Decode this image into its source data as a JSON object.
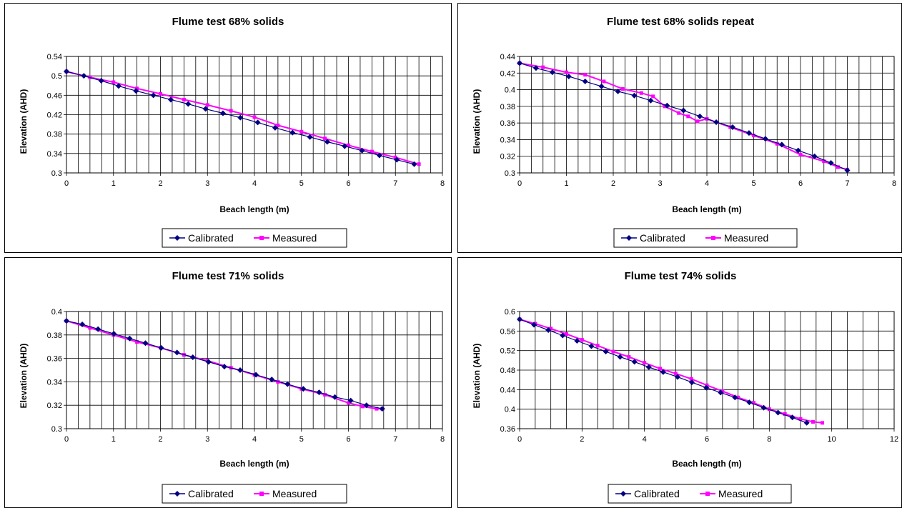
{
  "legend_labels": {
    "calibrated": "Calibrated",
    "measured": "Measured"
  },
  "colors": {
    "calibrated": "#000080",
    "measured": "#ff00ff"
  },
  "chart_data": [
    {
      "type": "line",
      "title": "Flume test 68% solids",
      "xlabel": "Beach length (m)",
      "ylabel": "Elevation (AHD)",
      "xlim": [
        0,
        8
      ],
      "ylim": [
        0.3,
        0.54
      ],
      "xticks": [
        0,
        1,
        2,
        3,
        4,
        5,
        6,
        7,
        8
      ],
      "xtick_labels": [
        "0",
        "1",
        "2",
        "3",
        "4",
        "5",
        "6",
        "7",
        "8"
      ],
      "yticks": [
        0.3,
        0.34,
        0.38,
        0.42,
        0.46,
        0.5,
        0.54
      ],
      "ytick_labels": [
        "0.3",
        "0.34",
        "0.38",
        "0.42",
        "0.46",
        "0.5",
        "0.54"
      ],
      "x_minor_step": 0.25,
      "grid": true,
      "legend_position": "bottom",
      "series": [
        {
          "name": "Calibrated",
          "marker": "diamond",
          "x": [
            0,
            0.37,
            0.74,
            1.11,
            1.48,
            1.85,
            2.22,
            2.59,
            2.96,
            3.33,
            3.7,
            4.07,
            4.44,
            4.81,
            5.18,
            5.55,
            5.92,
            6.29,
            6.66,
            7.03,
            7.4
          ],
          "y": [
            0.509,
            0.5,
            0.49,
            0.479,
            0.469,
            0.46,
            0.451,
            0.442,
            0.432,
            0.423,
            0.414,
            0.404,
            0.393,
            0.383,
            0.374,
            0.364,
            0.355,
            0.346,
            0.336,
            0.327,
            0.318
          ]
        },
        {
          "name": "Measured",
          "marker": "square",
          "x": [
            0,
            0.5,
            1.0,
            1.5,
            2.0,
            2.5,
            3.0,
            3.5,
            4.0,
            4.5,
            5.0,
            5.5,
            6.0,
            6.5,
            7.0,
            7.5
          ],
          "y": [
            0.509,
            0.497,
            0.487,
            0.474,
            0.463,
            0.451,
            0.44,
            0.428,
            0.415,
            0.398,
            0.385,
            0.371,
            0.357,
            0.344,
            0.332,
            0.318
          ]
        }
      ]
    },
    {
      "type": "line",
      "title": "Flume test 68% solids repeat",
      "xlabel": "Beach length (m)",
      "ylabel": "Elevation (AHD)",
      "xlim": [
        0,
        8
      ],
      "ylim": [
        0.3,
        0.44
      ],
      "xticks": [
        0,
        1,
        2,
        3,
        4,
        5,
        6,
        7,
        8
      ],
      "xtick_labels": [
        "0",
        "1",
        "2",
        "3",
        "4",
        "5",
        "6",
        "7",
        "8"
      ],
      "yticks": [
        0.3,
        0.32,
        0.34,
        0.36,
        0.38,
        0.4,
        0.42,
        0.44
      ],
      "ytick_labels": [
        "0.3",
        "0.32",
        "0.34",
        "0.36",
        "0.38",
        "0.4",
        "0.42",
        "0.44"
      ],
      "x_minor_step": 0.25,
      "grid": true,
      "legend_position": "bottom",
      "series": [
        {
          "name": "Calibrated",
          "marker": "diamond",
          "x": [
            0,
            0.35,
            0.7,
            1.05,
            1.4,
            1.75,
            2.1,
            2.45,
            2.8,
            3.15,
            3.5,
            3.85,
            4.2,
            4.55,
            4.9,
            5.25,
            5.6,
            5.95,
            6.3,
            6.65,
            7.0
          ],
          "y": [
            0.432,
            0.426,
            0.421,
            0.416,
            0.41,
            0.404,
            0.398,
            0.393,
            0.387,
            0.381,
            0.375,
            0.368,
            0.361,
            0.355,
            0.348,
            0.341,
            0.334,
            0.327,
            0.32,
            0.312,
            0.303
          ]
        },
        {
          "name": "Measured",
          "marker": "square",
          "x": [
            0,
            0.5,
            1.0,
            1.4,
            1.8,
            2.2,
            2.6,
            2.85,
            3.1,
            3.4,
            3.6,
            3.8,
            4.0,
            4.5,
            5.0,
            5.5,
            6.0,
            6.5,
            6.8,
            7.0
          ],
          "y": [
            0.432,
            0.427,
            0.421,
            0.418,
            0.41,
            0.401,
            0.396,
            0.392,
            0.38,
            0.372,
            0.368,
            0.362,
            0.365,
            0.355,
            0.345,
            0.335,
            0.322,
            0.314,
            0.307,
            0.304
          ]
        }
      ]
    },
    {
      "type": "line",
      "title": "Flume test 71% solids",
      "xlabel": "Beach length (m)",
      "ylabel": "Elevation (AHD)",
      "xlim": [
        0,
        8
      ],
      "ylim": [
        0.3,
        0.4
      ],
      "xticks": [
        0,
        1,
        2,
        3,
        4,
        5,
        6,
        7,
        8
      ],
      "xtick_labels": [
        "0",
        "1",
        "2",
        "3",
        "4",
        "5",
        "6",
        "7",
        "8"
      ],
      "yticks": [
        0.3,
        0.32,
        0.34,
        0.36,
        0.38,
        0.4
      ],
      "ytick_labels": [
        "0.3",
        "0.32",
        "0.34",
        "0.36",
        "0.38",
        "0.4"
      ],
      "x_minor_step": 0.25,
      "grid": true,
      "legend_position": "bottom",
      "series": [
        {
          "name": "Calibrated",
          "marker": "diamond",
          "x": [
            0,
            0.336,
            0.672,
            1.008,
            1.344,
            1.68,
            2.016,
            2.352,
            2.688,
            3.024,
            3.36,
            3.696,
            4.032,
            4.368,
            4.704,
            5.04,
            5.376,
            5.712,
            6.048,
            6.384,
            6.72
          ],
          "y": [
            0.392,
            0.389,
            0.385,
            0.381,
            0.377,
            0.373,
            0.369,
            0.365,
            0.361,
            0.357,
            0.353,
            0.35,
            0.346,
            0.342,
            0.338,
            0.334,
            0.331,
            0.327,
            0.324,
            0.32,
            0.317
          ]
        },
        {
          "name": "Measured",
          "marker": "square",
          "x": [
            0,
            0.5,
            1.0,
            1.5,
            2.0,
            2.5,
            3.0,
            3.5,
            4.0,
            4.5,
            5.0,
            5.5,
            6.0,
            6.3,
            6.6,
            6.72
          ],
          "y": [
            0.392,
            0.386,
            0.38,
            0.374,
            0.369,
            0.363,
            0.358,
            0.352,
            0.346,
            0.34,
            0.334,
            0.329,
            0.322,
            0.319,
            0.317,
            0.317
          ]
        }
      ]
    },
    {
      "type": "line",
      "title": "Flume test 74% solids",
      "xlabel": "Beach length (m)",
      "ylabel": "Elevation (AHD)",
      "xlim": [
        0,
        12
      ],
      "ylim": [
        0.36,
        0.6
      ],
      "xticks": [
        0,
        2,
        4,
        6,
        8,
        10,
        12
      ],
      "xtick_labels": [
        "0",
        "2",
        "4",
        "6",
        "8",
        "10",
        "12"
      ],
      "yticks": [
        0.36,
        0.4,
        0.44,
        0.48,
        0.52,
        0.56,
        0.6
      ],
      "ytick_labels": [
        "0.36",
        "0.4",
        "0.44",
        "0.48",
        "0.52",
        "0.56",
        "0.6"
      ],
      "x_minor_step": 0.5,
      "grid": true,
      "legend_position": "bottom",
      "series": [
        {
          "name": "Calibrated",
          "marker": "diamond",
          "x": [
            0,
            0.46,
            0.92,
            1.38,
            1.84,
            2.3,
            2.76,
            3.22,
            3.68,
            4.14,
            4.6,
            5.06,
            5.52,
            5.98,
            6.44,
            6.9,
            7.36,
            7.82,
            8.28,
            8.74,
            9.2
          ],
          "y": [
            0.584,
            0.573,
            0.562,
            0.551,
            0.54,
            0.529,
            0.518,
            0.507,
            0.497,
            0.486,
            0.476,
            0.466,
            0.455,
            0.444,
            0.434,
            0.424,
            0.414,
            0.403,
            0.393,
            0.383,
            0.372
          ]
        },
        {
          "name": "Measured",
          "marker": "square",
          "x": [
            0,
            0.5,
            1.0,
            1.5,
            2.0,
            2.5,
            3.0,
            3.5,
            4.0,
            4.5,
            5.0,
            5.5,
            6.0,
            6.5,
            7.0,
            7.5,
            8.0,
            8.5,
            9.0,
            9.4,
            9.7
          ],
          "y": [
            0.584,
            0.575,
            0.565,
            0.554,
            0.542,
            0.53,
            0.518,
            0.507,
            0.495,
            0.483,
            0.473,
            0.462,
            0.449,
            0.437,
            0.424,
            0.413,
            0.4,
            0.39,
            0.38,
            0.374,
            0.372
          ]
        }
      ]
    }
  ]
}
